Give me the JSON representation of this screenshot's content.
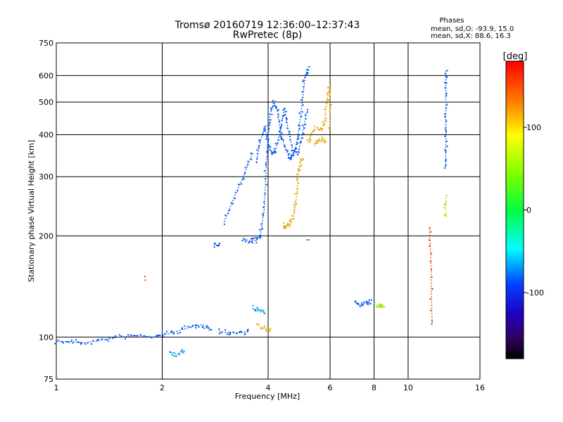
{
  "chart_data": {
    "type": "scatter",
    "title": "Tromsø 20160719 12:36:00–12:37:43",
    "subtitle": "RwPretec (8p)",
    "xlabel": "Frequency [MHz]",
    "ylabel": "Stationary phase Virtual Height [km]",
    "x_scale": "log",
    "y_scale": "log",
    "xlim": [
      1,
      16
    ],
    "ylim": [
      75,
      750
    ],
    "x_ticks": [
      1,
      2,
      4,
      6,
      8,
      10,
      16
    ],
    "x_tick_labels": [
      "1",
      "2",
      "4",
      "6",
      "8",
      "10",
      "16"
    ],
    "y_ticks": [
      75,
      100,
      200,
      300,
      400,
      500,
      600,
      750
    ],
    "y_tick_labels": [
      "75",
      "100",
      "200",
      "300",
      "400",
      "500",
      "600",
      "750"
    ],
    "grid": true,
    "phase_box": {
      "heading": "Phases",
      "line_o": "mean, sd,O: -93.9, 15.0",
      "line_x": "mean, sd,X:  88.6, 16.3"
    },
    "colorbar": {
      "title": "[deg]",
      "range": [
        -180,
        180
      ],
      "ticks": [
        100,
        0,
        -100
      ],
      "tick_labels": [
        "100",
        "0",
        "-100"
      ]
    },
    "series": [
      {
        "phase_deg": -105,
        "segments": [
          [
            [
              1.0,
              97
            ],
            [
              1.1,
              97
            ],
            [
              1.2,
              96
            ],
            [
              1.35,
              98
            ],
            [
              1.5,
              100
            ],
            [
              1.7,
              101
            ],
            [
              1.9,
              100
            ],
            [
              2.05,
              102
            ],
            [
              2.2,
              104
            ],
            [
              2.4,
              107
            ],
            [
              2.6,
              109
            ],
            [
              2.75,
              106
            ]
          ],
          [
            [
              2.9,
              104
            ],
            [
              3.1,
              103
            ],
            [
              3.3,
              103
            ],
            [
              3.5,
              104
            ]
          ],
          [
            [
              2.8,
              188
            ],
            [
              2.9,
              187
            ]
          ],
          [
            [
              3.4,
              195
            ],
            [
              3.55,
              193
            ],
            [
              3.7,
              194
            ],
            [
              3.8,
              200
            ],
            [
              3.9,
              240
            ],
            [
              3.95,
              320
            ],
            [
              4.0,
              400
            ],
            [
              4.05,
              460
            ],
            [
              4.15,
              500
            ],
            [
              4.25,
              470
            ],
            [
              4.35,
              400
            ],
            [
              4.5,
              360
            ],
            [
              4.6,
              340
            ],
            [
              4.7,
              345
            ],
            [
              4.8,
              370
            ],
            [
              4.9,
              420
            ],
            [
              5.0,
              500
            ],
            [
              5.1,
              600
            ],
            [
              5.2,
              630
            ]
          ],
          [
            [
              3.7,
              330
            ],
            [
              3.8,
              380
            ],
            [
              3.9,
              420
            ],
            [
              4.0,
              380
            ],
            [
              4.1,
              350
            ],
            [
              4.2,
              360
            ],
            [
              4.35,
              420
            ],
            [
              4.45,
              480
            ],
            [
              4.55,
              420
            ],
            [
              4.7,
              360
            ],
            [
              4.85,
              350
            ],
            [
              5.0,
              400
            ],
            [
              5.15,
              470
            ]
          ],
          [
            [
              3.0,
              220
            ],
            [
              3.2,
              260
            ],
            [
              3.4,
              300
            ],
            [
              3.6,
              350
            ]
          ],
          [
            [
              7.1,
              127
            ],
            [
              7.3,
              125
            ],
            [
              7.6,
              126
            ],
            [
              7.8,
              127
            ]
          ],
          [
            [
              12.8,
              620
            ],
            [
              12.8,
              550
            ],
            [
              12.8,
              450
            ],
            [
              12.8,
              380
            ],
            [
              12.8,
              320
            ]
          ]
        ]
      },
      {
        "phase_deg": -85,
        "segments": [
          [
            [
              3.6,
              122
            ],
            [
              3.75,
              120
            ],
            [
              3.9,
              119
            ]
          ],
          [
            [
              2.1,
              90
            ],
            [
              2.2,
              89
            ],
            [
              2.3,
              91
            ]
          ],
          [
            [
              5.2,
              195
            ]
          ]
        ]
      },
      {
        "phase_deg": 105,
        "segments": [
          [
            [
              4.4,
              215
            ],
            [
              4.5,
              212
            ],
            [
              4.6,
              216
            ],
            [
              4.7,
              225
            ],
            [
              4.8,
              250
            ],
            [
              4.85,
              290
            ],
            [
              4.9,
              320
            ],
            [
              5.0,
              340
            ]
          ],
          [
            [
              5.2,
              380
            ],
            [
              5.3,
              400
            ],
            [
              5.5,
              420
            ],
            [
              5.7,
              410
            ],
            [
              5.8,
              450
            ],
            [
              5.9,
              520
            ],
            [
              6.0,
              560
            ],
            [
              6.0,
              420
            ]
          ],
          [
            [
              5.4,
              370
            ],
            [
              5.6,
              390
            ],
            [
              5.8,
              380
            ]
          ],
          [
            [
              3.75,
              108
            ],
            [
              3.9,
              106
            ],
            [
              4.05,
              105
            ]
          ]
        ]
      },
      {
        "phase_deg": 60,
        "segments": [
          [
            [
              8.1,
              125
            ],
            [
              8.3,
              124
            ],
            [
              8.5,
              124
            ]
          ],
          [
            [
              12.8,
              260
            ],
            [
              12.8,
              230
            ]
          ]
        ]
      },
      {
        "phase_deg": 135,
        "segments": [
          [
            [
              1.8,
              150
            ]
          ],
          [
            [
              11.5,
              210
            ],
            [
              11.6,
              170
            ],
            [
              11.7,
              110
            ]
          ]
        ]
      }
    ]
  }
}
